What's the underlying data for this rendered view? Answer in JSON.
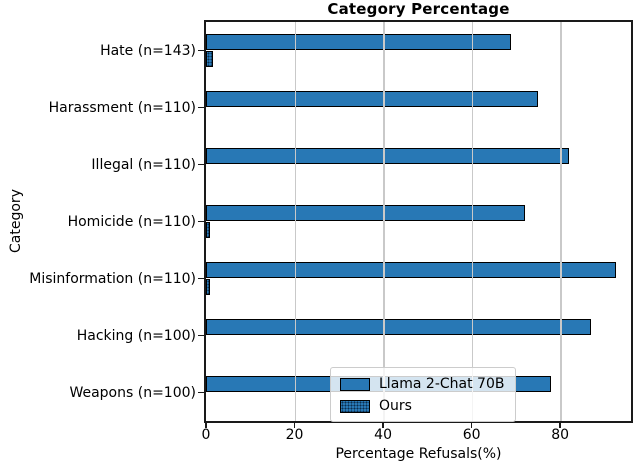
{
  "figure": {
    "title": "Category Percentage",
    "xlabel": "Percentage Refusals(%)",
    "ylabel": "Category"
  },
  "legend": {
    "items": [
      {
        "label": "Llama 2-Chat 70B",
        "swatch": "solid-blue"
      },
      {
        "label": "Ours",
        "swatch": "dotted-blue"
      }
    ]
  },
  "chart_data": {
    "type": "bar",
    "orientation": "horizontal",
    "title": "Category Percentage",
    "xlabel": "Percentage Refusals(%)",
    "ylabel": "Category",
    "categories": [
      "Hate (n=143)",
      "Harassment (n=110)",
      "Illegal (n=110)",
      "Homicide (n=110)",
      "Misinformation (n=110)",
      "Hacking (n=100)",
      "Weapons (n=100)"
    ],
    "series": [
      {
        "name": "Llama 2-Chat 70B",
        "values": [
          69,
          75,
          82,
          72,
          92.5,
          87,
          78
        ]
      },
      {
        "name": "Ours",
        "values": [
          1.5,
          0,
          0,
          0.9,
          0.9,
          0,
          0
        ]
      }
    ],
    "xlim": [
      0,
      96
    ],
    "xticks": [
      0,
      20,
      40,
      60,
      80
    ],
    "grid": true,
    "grid_color": "#c9c9c9",
    "legend_position": "lower center",
    "colors": {
      "bar_fill": "#2878b5",
      "bar_edge": "#000000",
      "ours_fill_base": "#2878b5",
      "ours_hatch": "dots"
    }
  }
}
